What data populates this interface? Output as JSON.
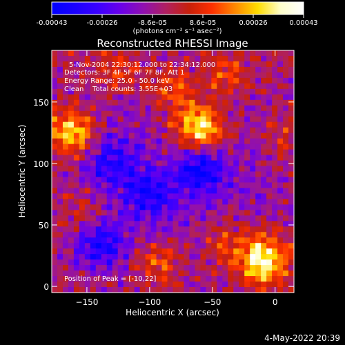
{
  "chart_data": {
    "type": "heatmap",
    "title": "Reconstructed RHESSI Image",
    "xlabel": "Heliocentric X (arcsec)",
    "ylabel": "Heliocentric Y (arcsec)",
    "xlim": [
      -178,
      15
    ],
    "ylim": [
      -5,
      192
    ],
    "x_ticks": [
      -150,
      -100,
      -50,
      0
    ],
    "y_ticks": [
      0,
      50,
      100,
      150
    ],
    "colorbar": {
      "unit_label": "(photons cm⁻² s⁻¹ asec⁻²)",
      "tick_labels": [
        "-0.00043",
        "-0.00026",
        "-8.6e-05",
        "8.6e-05",
        "0.00026",
        "0.00043"
      ],
      "range": [
        -0.00043,
        0.00043
      ],
      "colormap": [
        "#0000ff",
        "#1a00ff",
        "#3a00ff",
        "#6a00e8",
        "#9010b0",
        "#b02060",
        "#c8200a",
        "#ff3000",
        "#ff8800",
        "#ffdd00",
        "#ffffcc",
        "#ffffff"
      ]
    },
    "annotations": {
      "time_range": "5-Nov-2004 22:30:12.000 to 22:34:12.000",
      "detectors": "Detectors: 3F 4F 5F 6F 7F 8F, Att 1",
      "energy_range": "Energy Range: 25.0 - 50.0 keV",
      "method_counts": "Clean    Total counts: 3.55E+03",
      "peak": "Position of Peak = [-10,22]"
    },
    "peak_position": [
      -10,
      22
    ],
    "hot_spots": [
      {
        "x": -60,
        "y": 128,
        "value": 0.00043
      },
      {
        "x": -10,
        "y": 22,
        "value": 0.00043
      },
      {
        "x": -162,
        "y": 125,
        "value": 0.00035
      },
      {
        "x": -82,
        "y": 160,
        "value": 0.00022
      },
      {
        "x": -40,
        "y": 172,
        "value": 0.00018
      },
      {
        "x": -152,
        "y": 60,
        "value": 0.00015
      },
      {
        "x": -92,
        "y": 20,
        "value": 0.0002
      },
      {
        "x": -40,
        "y": 35,
        "value": 0.00016
      },
      {
        "x": 5,
        "y": 120,
        "value": 0.00012
      },
      {
        "x": -125,
        "y": 175,
        "value": 0.00016
      }
    ],
    "cold_spots": [
      {
        "x": -60,
        "y": 95,
        "value": -0.0003
      },
      {
        "x": -140,
        "y": 35,
        "value": -0.00028
      },
      {
        "x": -100,
        "y": 75,
        "value": -0.00025
      },
      {
        "x": -130,
        "y": 100,
        "value": -0.00022
      }
    ]
  },
  "footer": {
    "timestamp": "4-May-2022 20:39"
  }
}
